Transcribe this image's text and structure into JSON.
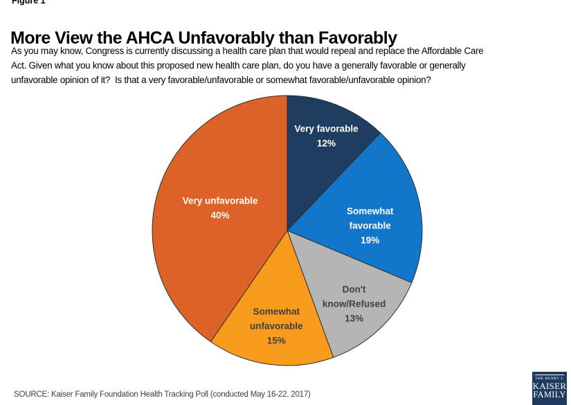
{
  "page": {
    "figure_label": "Figure 1",
    "title": "More View the AHCA Unfavorably than Favorably",
    "question": "As you may know, Congress is currently discussing a health care plan that would repeal and replace the Affordable Care\nAct. Given what you know about this proposed new health care plan, do you have a generally favorable or generally\nunfavorable opinion of it?  Is that a very favorable/unfavorable or somewhat favorable/unfavorable opinion?",
    "source": "SOURCE: Kaiser Family Foundation Health Tracking Poll (conducted May 16-22, 2017)"
  },
  "logo": {
    "top": "THE HENRY J.",
    "mid": "KAISER",
    "bottom": "FAMILY",
    "bg_color": "#1E3A5F"
  },
  "chart_data": {
    "type": "pie",
    "title": "More View the AHCA Unfavorably than Favorably",
    "start_angle_deg": 0,
    "direction": "clockwise",
    "stroke_color": "#2f2f2f",
    "slices": [
      {
        "label": "Very favorable",
        "value": 12,
        "percent_label": "12%",
        "color": "#1F3C61",
        "text_color": "#FFFFFF",
        "label_lines": [
          "Very favorable",
          "12%"
        ],
        "label_radius": 0.76,
        "label_angle_deg": 22.4
      },
      {
        "label": "Somewhat favorable",
        "value": 19,
        "percent_label": "19%",
        "color": "#1276CB",
        "text_color": "#FFFFFF",
        "label_lines": [
          "Somewhat",
          "favorable",
          "19%"
        ],
        "label_radius": 0.615,
        "label_angle_deg": 86.4
      },
      {
        "label": "Don't know/Refused",
        "value": 13,
        "percent_label": "13%",
        "color": "#B5B5B5",
        "text_color": "#404040",
        "label_lines": [
          "Don't",
          "know/Refused",
          "13%"
        ],
        "label_radius": 0.733,
        "label_angle_deg": 137.5
      },
      {
        "label": "Somewhat unfavorable",
        "value": 15,
        "percent_label": "15%",
        "color": "#F99B1C",
        "text_color": "#404040",
        "label_lines": [
          "Somewhat",
          "unfavorable",
          "15%"
        ],
        "label_radius": 0.71,
        "label_angle_deg": 186.5
      },
      {
        "label": "Very unfavorable",
        "value": 40,
        "percent_label": "40%",
        "color": "#DC6227",
        "text_color": "#FFFFFF",
        "label_lines": [
          "Very unfavorable",
          "40%"
        ],
        "label_radius": 0.525,
        "label_angle_deg": 288.8
      }
    ]
  }
}
